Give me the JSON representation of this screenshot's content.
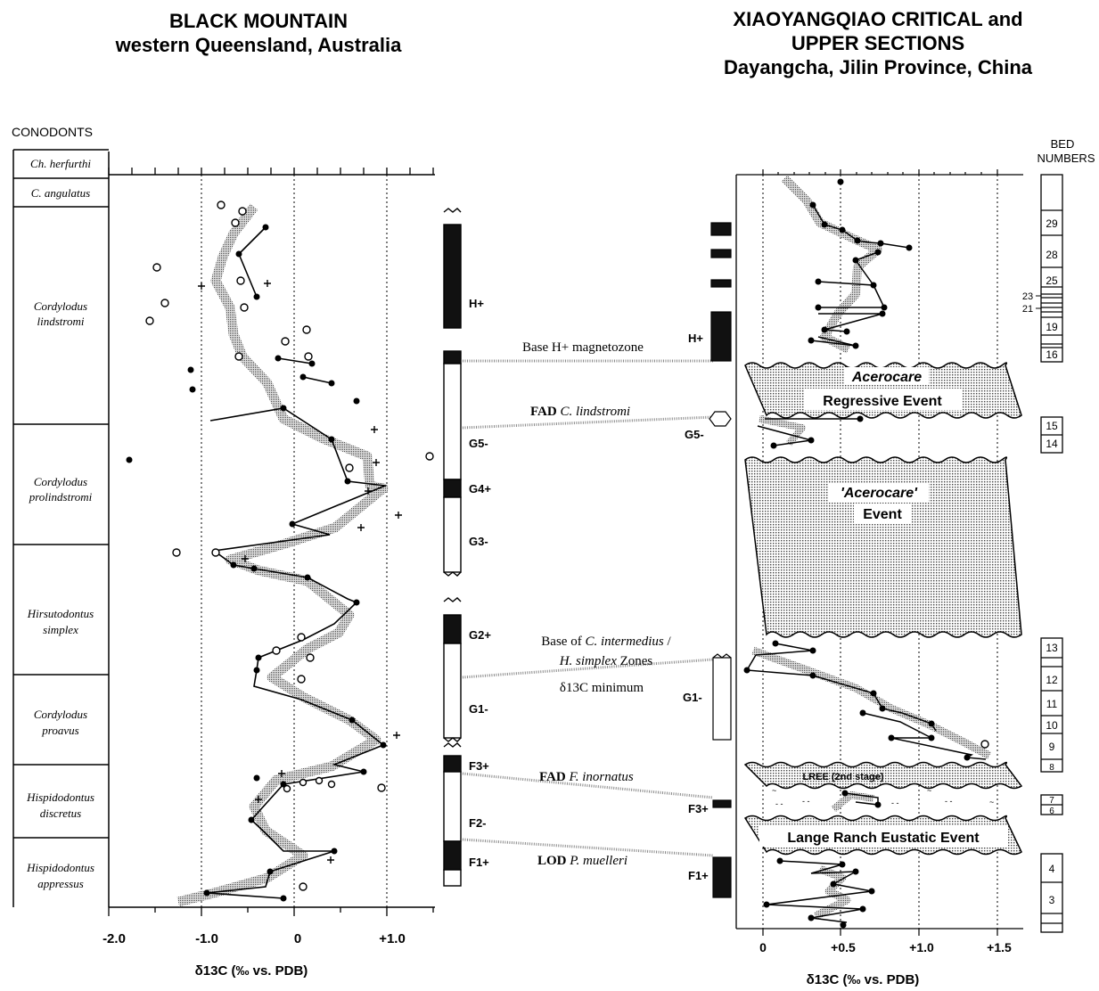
{
  "left_title": {
    "line1": "BLACK MOUNTAIN",
    "line2": "western Queensland, Australia"
  },
  "right_title": {
    "line1": "XIAOYANGQIAO CRITICAL and",
    "line2": "UPPER SECTIONS",
    "line3": "Dayangcha, Jilin Province, China"
  },
  "conodonts_heading": "CONODONTS",
  "bed_heading": {
    "line1": "BED",
    "line2": "NUMBERS"
  },
  "conodont_zones": [
    {
      "l1": "Ch. herfurthi",
      "l2": ""
    },
    {
      "l1": "C. angulatus",
      "l2": ""
    },
    {
      "l1": "Cordylodus",
      "l2": "lindstromi"
    },
    {
      "l1": "Cordylodus",
      "l2": "prolindstromi"
    },
    {
      "l1": "Hirsutodontus",
      "l2": "simplex"
    },
    {
      "l1": "Cordylodus",
      "l2": "proavus"
    },
    {
      "l1": "Hispidodontus",
      "l2": "discretus"
    },
    {
      "l1": "Hispidodontus",
      "l2": "appressus"
    }
  ],
  "left_axis": {
    "ticks": [
      "-2.0",
      "-1.0",
      "0",
      "+1.0"
    ],
    "label": "δ13C (‰ vs. PDB)"
  },
  "right_axis": {
    "ticks": [
      "0",
      "+0.5",
      "+1.0",
      "+1.5"
    ],
    "label": "δ13C (‰ vs. PDB)"
  },
  "magnetozones_left": [
    "H+",
    "G5-",
    "G4+",
    "G3-",
    "G2+",
    "G1-",
    "F3+",
    "F2-",
    "F1+"
  ],
  "magnetozones_right": [
    "H+",
    "G5-",
    "G1-",
    "F3+",
    "F1+"
  ],
  "correlations": [
    {
      "prefix": "Base H+ magnetozone",
      "italic": ""
    },
    {
      "prefix": "FAD ",
      "italic": "C. lindstromi"
    },
    {
      "prefix": "FAD ",
      "italic": "F. inornatus"
    },
    {
      "prefix": "LOD ",
      "italic": "P. muelleri"
    }
  ],
  "base_zone_note": {
    "l1_a": "Base of ",
    "l1_b": "C. intermedius",
    "l1_c": " /",
    "l2_a": "H. simplex",
    "l2_b": " Zones",
    "l3": "δ13C minimum"
  },
  "events": [
    {
      "l1": "Acerocare",
      "l2": "Regressive Event"
    },
    {
      "l1": "'Acerocare'",
      "l2": "Event"
    },
    {
      "l1": "LREE (2nd stage)",
      "l2": ""
    },
    {
      "l1": "Lange Ranch Eustatic Event",
      "l2": ""
    }
  ],
  "bed_numbers": [
    "29",
    "28",
    "25",
    "23",
    "21",
    "19",
    "16",
    "15",
    "14",
    "13",
    "12",
    "11",
    "10",
    "9",
    "8",
    "7",
    "6",
    "4",
    "3"
  ]
}
